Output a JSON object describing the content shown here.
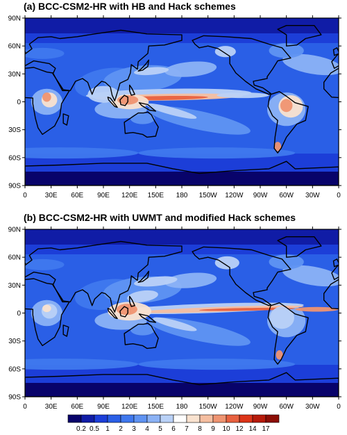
{
  "panels": [
    {
      "title": "(a) BCC-CSM2-HR with HB and Hack schemes",
      "variant": "a"
    },
    {
      "title": "(b) BCC-CSM2-HR with UWMT and modified Hack schemes",
      "variant": "b"
    }
  ],
  "lat_ticks": [
    "90N",
    "60N",
    "30N",
    "0",
    "30S",
    "60S",
    "90S"
  ],
  "lon_ticks": [
    "0",
    "30E",
    "60E",
    "90E",
    "120E",
    "150E",
    "180",
    "150W",
    "120W",
    "90W",
    "60W",
    "30W",
    "0"
  ],
  "colorbar": {
    "labels": [
      "0.2",
      "0.5",
      "1",
      "2",
      "3",
      "4",
      "5",
      "6",
      "7",
      "8",
      "9",
      "10",
      "12",
      "14",
      "17"
    ],
    "colors": [
      "#08036a",
      "#101ca6",
      "#1c3ed8",
      "#2a5fe6",
      "#3f78ee",
      "#5f93f2",
      "#8bb2f5",
      "#b9d1f7",
      "#ffffff",
      "#f9e2cf",
      "#f5bea0",
      "#ef9471",
      "#e8613f",
      "#dc3418",
      "#b61a0a",
      "#8c0e05"
    ]
  },
  "colors": {
    "land_contour": "#000000",
    "background": "#ffffff"
  }
}
